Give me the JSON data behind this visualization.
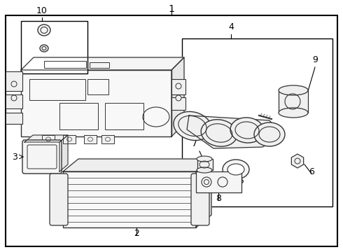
{
  "bg_color": "#ffffff",
  "border_color": "#000000",
  "line_color": "#333333",
  "text_color": "#000000",
  "fig_width": 4.9,
  "fig_height": 3.6,
  "dpi": 100
}
